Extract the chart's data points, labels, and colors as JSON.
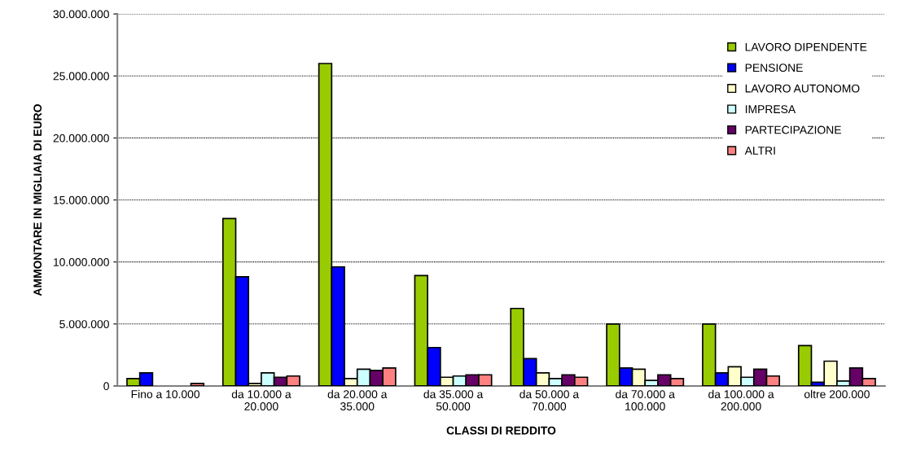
{
  "chart_data": {
    "type": "bar",
    "xlabel": "CLASSI DI REDDITO",
    "ylabel": "AMMONTARE IN MIGLIAIA DI EURO",
    "categories": [
      "Fino a 10.000",
      "da 10.000 a\n20.000",
      "da 20.000 a\n35.000",
      "da 35.000 a\n50.000",
      "da 50.000 a\n70.000",
      "da 70.000 a\n100.000",
      "da 100.000 a\n200.000",
      "oltre 200.000"
    ],
    "series": [
      {
        "name": "LAVORO DIPENDENTE",
        "color": "#99cc00",
        "values": [
          600000,
          13500000,
          26000000,
          8900000,
          6250000,
          5000000,
          5000000,
          3250000
        ]
      },
      {
        "name": "PENSIONE",
        "color": "#0000ff",
        "values": [
          1050000,
          8800000,
          9600000,
          3100000,
          2200000,
          1450000,
          1050000,
          300000
        ]
      },
      {
        "name": "LAVORO AUTONOMO",
        "color": "#ffffcc",
        "values": [
          null,
          200000,
          600000,
          700000,
          1050000,
          1350000,
          1550000,
          2000000
        ]
      },
      {
        "name": "IMPRESA",
        "color": "#ccffff",
        "values": [
          null,
          1050000,
          1350000,
          800000,
          600000,
          450000,
          700000,
          400000
        ]
      },
      {
        "name": "PARTECIPAZIONE",
        "color": "#660066",
        "values": [
          null,
          700000,
          1250000,
          900000,
          900000,
          900000,
          1350000,
          1450000
        ]
      },
      {
        "name": "ALTRI",
        "color": "#ff8080",
        "values": [
          200000,
          800000,
          1450000,
          900000,
          700000,
          600000,
          800000,
          600000
        ]
      }
    ],
    "ylim": [
      0,
      30000000
    ],
    "yticks": [
      {
        "value": 0,
        "label": "0"
      },
      {
        "value": 5000000,
        "label": "5.000.000"
      },
      {
        "value": 10000000,
        "label": "10.000.000"
      },
      {
        "value": 15000000,
        "label": "15.000.000"
      },
      {
        "value": 20000000,
        "label": "20.000.000"
      },
      {
        "value": 25000000,
        "label": "25.000.000"
      },
      {
        "value": 30000000,
        "label": "30.000.000"
      }
    ],
    "grid": "y",
    "legend": "top right"
  }
}
